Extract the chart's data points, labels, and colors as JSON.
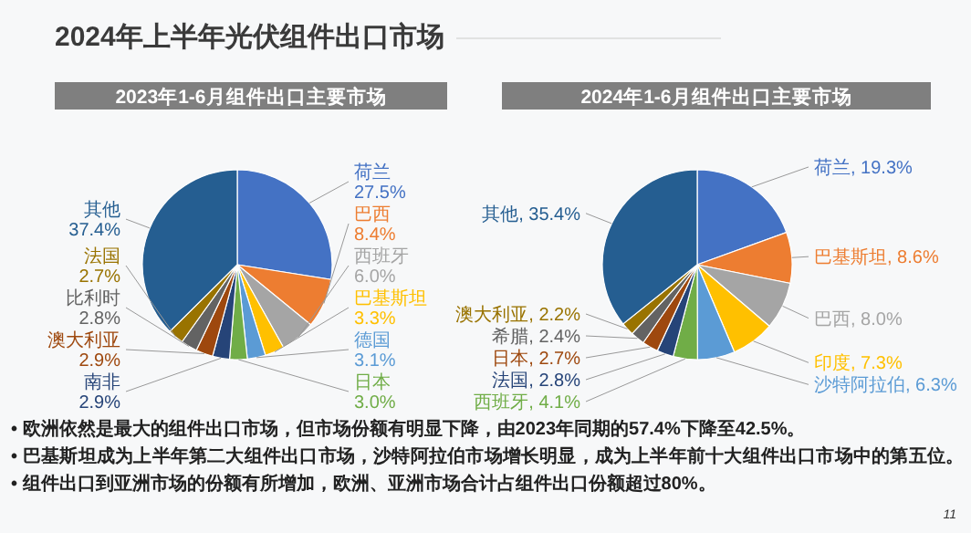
{
  "chart_data": [
    {
      "type": "pie",
      "subtitle": "2023年1-6月组件出口主要市场",
      "categories": [
        "荷兰",
        "巴西",
        "西班牙",
        "巴基斯坦",
        "德国",
        "日本",
        "南非",
        "澳大利亚",
        "比利时",
        "法国",
        "其他"
      ],
      "values": [
        27.5,
        8.4,
        6.0,
        3.3,
        3.1,
        3.0,
        2.9,
        2.9,
        2.8,
        2.7,
        37.4
      ],
      "value_labels": [
        "27.5%",
        "8.4%",
        "6.0%",
        "3.3%",
        "3.1%",
        "3.0%",
        "2.9%",
        "2.9%",
        "2.8%",
        "2.7%",
        "37.4%"
      ],
      "colors": [
        "#4472c4",
        "#ed7d31",
        "#a5a5a5",
        "#ffc000",
        "#5b9bd5",
        "#70ad47",
        "#264478",
        "#9e480e",
        "#636363",
        "#997300",
        "#255e91"
      ]
    },
    {
      "type": "pie",
      "subtitle": "2024年1-6月组件出口主要市场",
      "categories": [
        "荷兰",
        "巴基斯坦",
        "巴西",
        "印度",
        "沙特阿拉伯",
        "西班牙",
        "法国",
        "日本",
        "希腊",
        "澳大利亚",
        "其他"
      ],
      "values": [
        19.3,
        8.6,
        8.0,
        7.3,
        6.3,
        4.1,
        2.8,
        2.7,
        2.4,
        2.2,
        35.4
      ],
      "value_labels": [
        "19.3%",
        "8.6%",
        "8.0%",
        "7.3%",
        "6.3%",
        "4.1%",
        "2.8%",
        "2.7%",
        "2.4%",
        "2.2%",
        "35.4%"
      ],
      "colors": [
        "#4472c4",
        "#ed7d31",
        "#a5a5a5",
        "#ffc000",
        "#5b9bd5",
        "#70ad47",
        "#264478",
        "#9e480e",
        "#636363",
        "#997300",
        "#255e91"
      ]
    },
    {
      "type": "other",
      "title": "2024年上半年光伏组件出口市场",
      "annotations": [
        "• 欧洲依然是最大的组件出口市场，但市场份额有明显下降，由2023年同期的57.4%下降至42.5%。",
        "• 巴基斯坦成为上半年第二大组件出口市场，沙特阿拉伯市场增长明显，成为上半年前十大组件出口市场中的第五位。",
        "• 组件出口到亚洲市场的份额有所增加，欧洲、亚洲市场合计占组件出口份额超过80%。",
        "11"
      ]
    }
  ]
}
